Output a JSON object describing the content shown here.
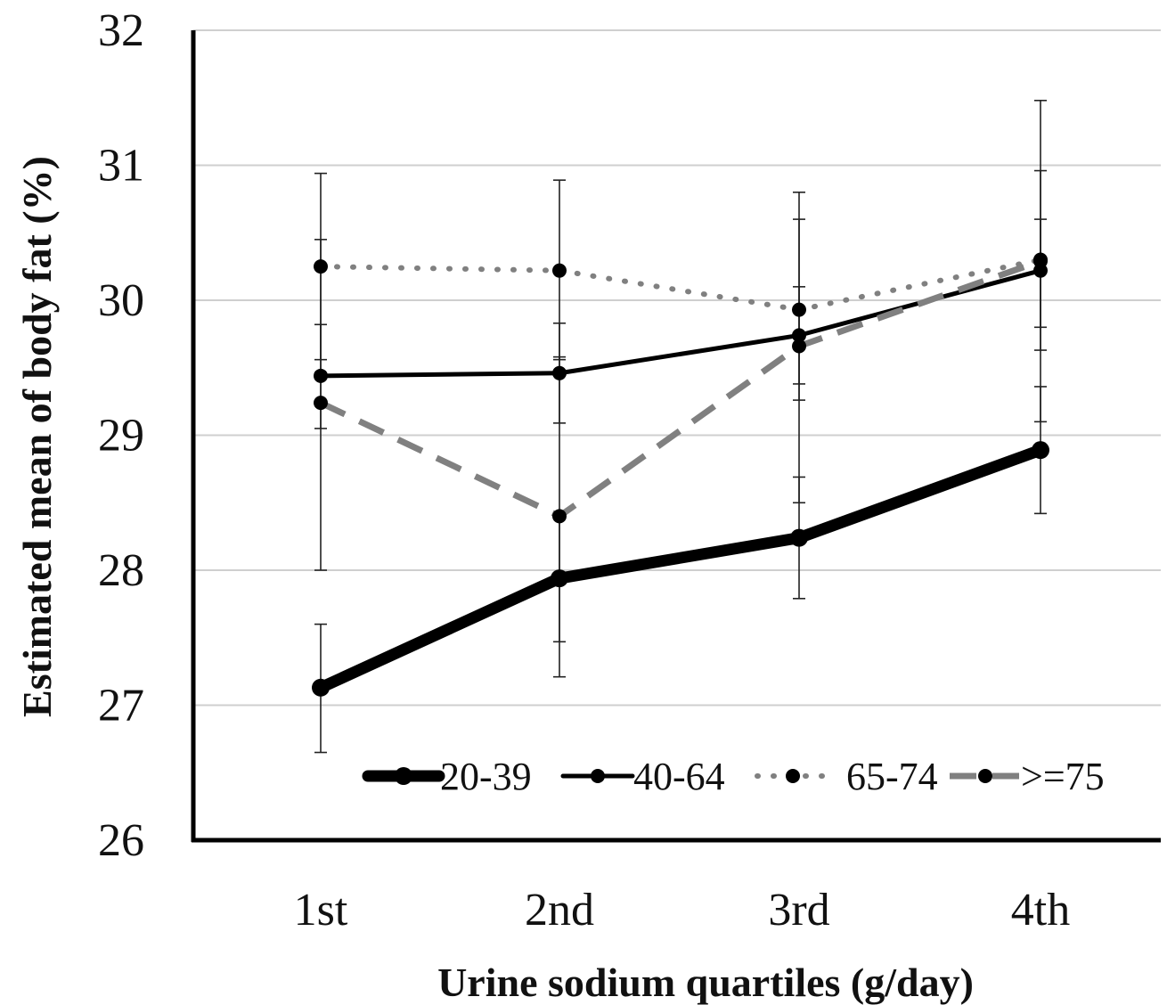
{
  "chart_data": {
    "type": "line",
    "title": "",
    "xlabel": "Urine sodium quartiles (g/day)",
    "ylabel": "Estimated mean of body fat  (%)",
    "categories": [
      "1st",
      "2nd",
      "3rd",
      "4th"
    ],
    "ylim": [
      26,
      32
    ],
    "yticks": [
      "26",
      "27",
      "28",
      "29",
      "30",
      "31",
      "32"
    ],
    "grid": true,
    "legend_position": "bottom-right",
    "series": [
      {
        "name": "20-39",
        "values": [
          27.13,
          27.94,
          28.24,
          28.89
        ],
        "error_low": [
          26.65,
          27.47,
          27.79,
          28.42
        ],
        "error_high": [
          27.6,
          28.41,
          28.69,
          29.36
        ],
        "color": "#000000",
        "style": "thick-solid"
      },
      {
        "name": "40-64",
        "values": [
          29.44,
          29.46,
          29.74,
          30.22
        ],
        "error_low": [
          29.05,
          29.09,
          29.38,
          29.8
        ],
        "error_high": [
          29.82,
          29.83,
          30.1,
          30.6
        ],
        "color": "#000000",
        "style": "solid"
      },
      {
        "name": "65-74",
        "values": [
          30.25,
          30.22,
          29.93,
          30.3
        ],
        "error_low": [
          29.56,
          29.56,
          29.26,
          29.63
        ],
        "error_high": [
          30.94,
          30.89,
          30.6,
          30.96
        ],
        "color": "#808080",
        "style": "dotted"
      },
      {
        "name": ">=75",
        "values": [
          29.24,
          28.4,
          29.66,
          30.29
        ],
        "error_low": [
          28.0,
          27.21,
          28.5,
          29.1
        ],
        "error_high": [
          30.45,
          29.58,
          30.8,
          31.48
        ],
        "color": "#808080",
        "style": "dashed"
      }
    ]
  }
}
